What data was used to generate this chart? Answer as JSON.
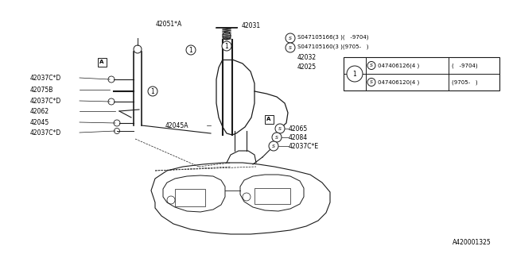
{
  "bg_color": "#ffffff",
  "line_color": "#1a1a1a",
  "figsize": [
    6.4,
    3.2
  ],
  "dpi": 100,
  "part_label_42051A": "42051*A",
  "part_label_42031": "42031",
  "part_label_42032": "42032",
  "part_label_42025": "42025",
  "part_label_42075B": "42075B",
  "part_label_42037CD1": "42037C*D",
  "part_label_42037CD2": "42037C*D",
  "part_label_42062": "42062",
  "part_label_42045A": "42045A",
  "part_label_42045": "42045",
  "part_label_42037CD3": "42037C*D",
  "part_label_42065": "42065",
  "part_label_42084": "42084",
  "part_label_42037CE": "42037C*E",
  "footer_text": "A420001325",
  "top_label1": "S047105166(3 )(   -9704)",
  "top_label2": "S047105160(3 )(9705-   )",
  "table_r1c2": "047406126(4 )",
  "table_r1c3": "(   -9704)",
  "table_r2c2": "047406120(4 )",
  "table_r2c3": "(9705-   )"
}
